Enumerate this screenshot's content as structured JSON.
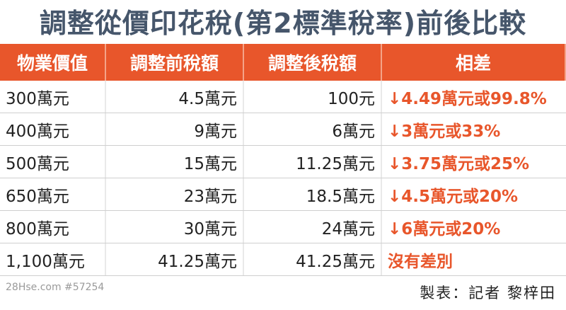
{
  "title": "調整從價印花稅(第2標準稅率)前後比較",
  "table": {
    "header": [
      "物業價值",
      "調整前稅額",
      "調整後稅額",
      "相差"
    ],
    "rows": [
      [
        "300萬元",
        "4.5萬元",
        "100元",
        "↓4.49萬元或99.8%"
      ],
      [
        "400萬元",
        "9萬元",
        "6萬元",
        "↓3萬元或33%"
      ],
      [
        "500萬元",
        "15萬元",
        "11.25萬元",
        "↓3.75萬元或25%"
      ],
      [
        "650萬元",
        "23萬元",
        "18.5萬元",
        "↓4.5萬元或20%"
      ],
      [
        "800萬元",
        "30萬元",
        "24萬元",
        "↓6萬元或20%"
      ],
      [
        "1,100萬元",
        "41.25萬元",
        "41.25萬元",
        "沒有差別"
      ]
    ]
  },
  "watermark": "28Hse.com #57254",
  "credit": "製表：記者 黎梓田"
}
